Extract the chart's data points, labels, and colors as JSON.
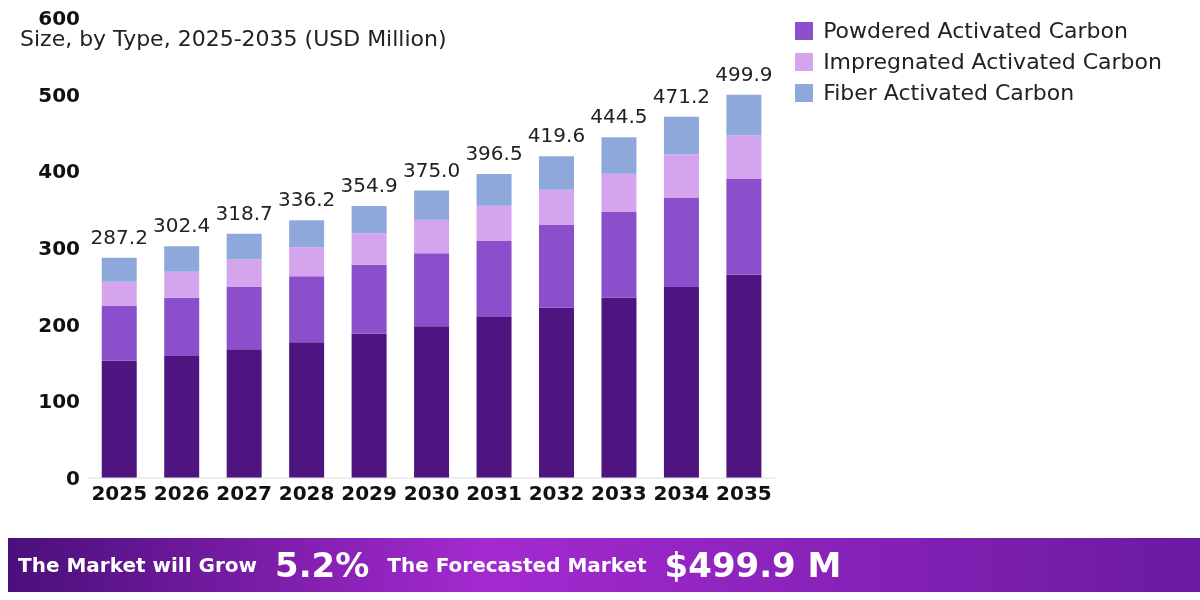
{
  "chart_data": {
    "type": "bar",
    "stacked": true,
    "title": "Size, by Type, 2025-2035 (USD Million)",
    "categories": [
      "2025",
      "2026",
      "2027",
      "2028",
      "2029",
      "2030",
      "2031",
      "2032",
      "2033",
      "2034",
      "2035"
    ],
    "series": [
      {
        "color": "#4e1581",
        "values": [
          153,
          159,
          168,
          177,
          188,
          198,
          210,
          222,
          235,
          249,
          265
        ]
      },
      {
        "name": "Powdered Activated Carbon",
        "color": "#8b4fcc",
        "values": [
          72,
          76,
          81,
          86,
          90,
          95,
          99,
          108,
          112,
          117,
          125
        ]
      },
      {
        "name": "Impregnated Activated Carbon",
        "color": "#d4a5ec",
        "values": [
          31,
          34,
          36,
          38,
          41,
          44,
          46,
          46,
          50,
          56,
          57
        ]
      },
      {
        "name": "Fiber Activated Carbon",
        "color": "#8fa8dc",
        "values": [
          31.2,
          33.4,
          33.7,
          35.2,
          35.9,
          38,
          41.5,
          43.6,
          47.5,
          49.2,
          52.9
        ]
      }
    ],
    "totals": [
      "287.2",
      "302.4",
      "318.7",
      "336.2",
      "354.9",
      "375.0",
      "396.5",
      "419.6",
      "444.5",
      "471.2",
      "499.9"
    ],
    "ylim": [
      0,
      600
    ],
    "yticks": [
      0,
      100,
      200,
      300,
      400,
      500,
      600
    ],
    "grid": false,
    "legend": "top right",
    "annotations": [
      "The Market will Grow",
      "5.2%",
      "The Forecasted Market",
      "$499.9 M"
    ]
  }
}
